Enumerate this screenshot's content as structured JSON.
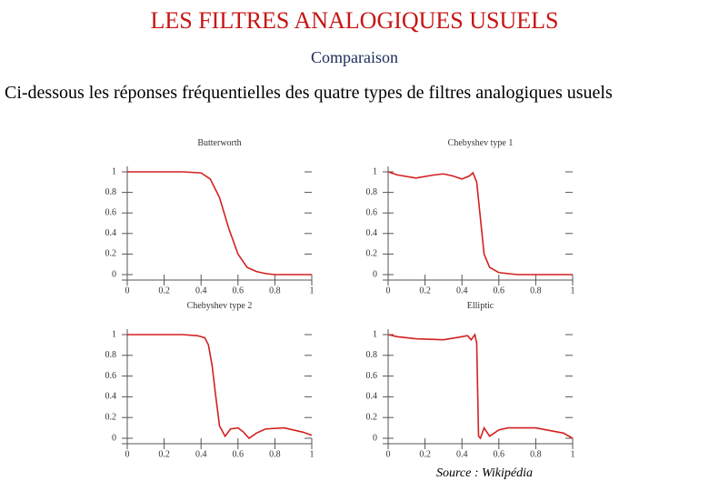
{
  "header": {
    "title": "LES FILTRES ANALOGIQUES USUELS",
    "subtitle": "Comparaison",
    "text": "Ci-dessous les réponses fréquentielles des quatre types de filtres analogiques usuels"
  },
  "source": "Source : Wikipédia",
  "chart_data": [
    {
      "type": "line",
      "title": "Butterworth",
      "x": [
        0,
        0.1,
        0.2,
        0.3,
        0.4,
        0.45,
        0.5,
        0.55,
        0.6,
        0.65,
        0.7,
        0.75,
        0.8,
        0.9,
        1
      ],
      "series": [
        {
          "color": "#d42020",
          "values": [
            1,
            1,
            1,
            1,
            0.99,
            0.93,
            0.75,
            0.45,
            0.2,
            0.07,
            0.03,
            0.01,
            0,
            0,
            0
          ]
        }
      ],
      "xlim": [
        0,
        1
      ],
      "ylim": [
        0,
        1
      ],
      "xticks": [
        0,
        0.2,
        0.4,
        0.6,
        0.8,
        1
      ],
      "yticks": [
        0,
        0.2,
        0.4,
        0.6,
        0.8,
        1
      ]
    },
    {
      "type": "line",
      "title": "Chebyshev type 1",
      "x": [
        0,
        0.05,
        0.15,
        0.25,
        0.3,
        0.35,
        0.4,
        0.44,
        0.46,
        0.48,
        0.5,
        0.52,
        0.55,
        0.6,
        0.65,
        0.7,
        0.8,
        1
      ],
      "series": [
        {
          "color": "#d42020",
          "values": [
            1,
            0.97,
            0.94,
            0.97,
            0.98,
            0.96,
            0.93,
            0.96,
            0.99,
            0.9,
            0.55,
            0.2,
            0.07,
            0.02,
            0.01,
            0,
            0,
            0
          ]
        }
      ],
      "xlim": [
        0,
        1
      ],
      "ylim": [
        0,
        1
      ],
      "xticks": [
        0,
        0.2,
        0.4,
        0.6,
        0.8,
        1
      ],
      "yticks": [
        0,
        0.2,
        0.4,
        0.6,
        0.8,
        1
      ]
    },
    {
      "type": "line",
      "title": "Chebyshev type 2",
      "x": [
        0,
        0.1,
        0.2,
        0.3,
        0.38,
        0.42,
        0.44,
        0.46,
        0.48,
        0.5,
        0.53,
        0.56,
        0.6,
        0.63,
        0.66,
        0.7,
        0.75,
        0.85,
        0.95,
        1
      ],
      "series": [
        {
          "color": "#d42020",
          "values": [
            1,
            1,
            1,
            1,
            0.99,
            0.97,
            0.9,
            0.7,
            0.4,
            0.12,
            0.02,
            0.09,
            0.1,
            0.06,
            0,
            0.05,
            0.09,
            0.1,
            0.06,
            0.03
          ]
        }
      ],
      "xlim": [
        0,
        1
      ],
      "ylim": [
        0,
        1
      ],
      "xticks": [
        0,
        0.2,
        0.4,
        0.6,
        0.8,
        1
      ],
      "yticks": [
        0,
        0.2,
        0.4,
        0.6,
        0.8,
        1
      ]
    },
    {
      "type": "line",
      "title": "Elliptic",
      "x": [
        0,
        0.05,
        0.15,
        0.3,
        0.4,
        0.43,
        0.45,
        0.47,
        0.48,
        0.49,
        0.5,
        0.52,
        0.55,
        0.6,
        0.65,
        0.8,
        0.95,
        1
      ],
      "series": [
        {
          "color": "#d42020",
          "values": [
            1,
            0.98,
            0.96,
            0.95,
            0.98,
            0.99,
            0.95,
            1,
            0.92,
            0.02,
            0,
            0.1,
            0.02,
            0.08,
            0.1,
            0.1,
            0.05,
            0
          ]
        }
      ],
      "xlim": [
        0,
        1
      ],
      "ylim": [
        0,
        1
      ],
      "xticks": [
        0,
        0.2,
        0.4,
        0.6,
        0.8,
        1
      ],
      "yticks": [
        0,
        0.2,
        0.4,
        0.6,
        0.8,
        1
      ]
    }
  ]
}
